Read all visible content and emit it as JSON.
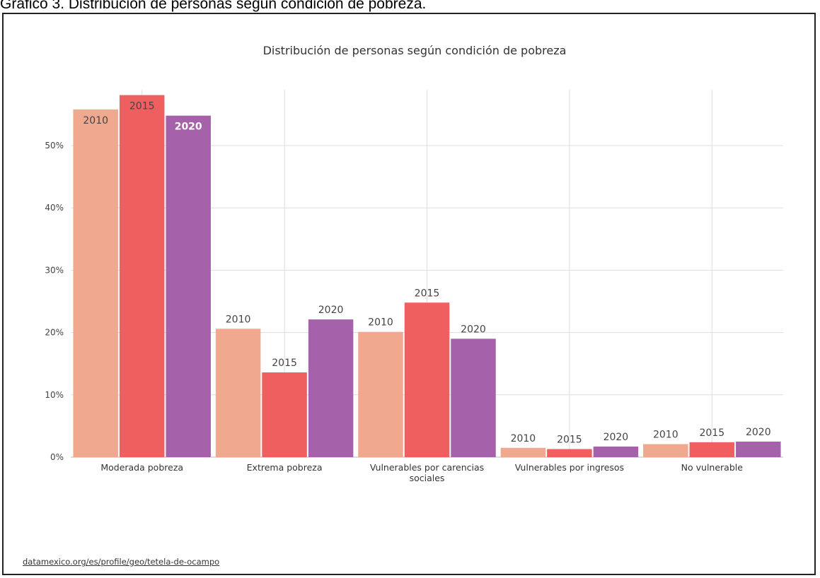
{
  "caption": "Gráfico 3. Distribución de personas según condición de pobreza.",
  "source_link": "datamexico.org/es/profile/geo/tetela-de-ocampo",
  "chart_data": {
    "type": "bar",
    "title": "Distribución de personas según condición de pobreza",
    "xlabel": "",
    "ylabel": "",
    "ylim": [
      0,
      60
    ],
    "yticks": [
      0,
      10,
      20,
      30,
      40,
      50
    ],
    "ytick_labels": [
      "0%",
      "10%",
      "20%",
      "30%",
      "40%",
      "50%"
    ],
    "grid": true,
    "categories": [
      [
        "Moderada pobreza"
      ],
      [
        "Extrema pobreza"
      ],
      [
        "Vulnerables por carencias",
        "sociales"
      ],
      [
        "Vulnerables por ingresos"
      ],
      [
        "No vulnerable"
      ]
    ],
    "series": [
      {
        "name": "2010",
        "color": "#f0a88e",
        "values": [
          55.8,
          20.6,
          20.1,
          1.5,
          2.1
        ]
      },
      {
        "name": "2015",
        "color": "#ef5f5f",
        "values": [
          58.1,
          13.6,
          24.8,
          1.3,
          2.4
        ]
      },
      {
        "name": "2020",
        "color": "#a562aa",
        "values": [
          54.8,
          22.1,
          19.0,
          1.7,
          2.5
        ]
      }
    ]
  }
}
